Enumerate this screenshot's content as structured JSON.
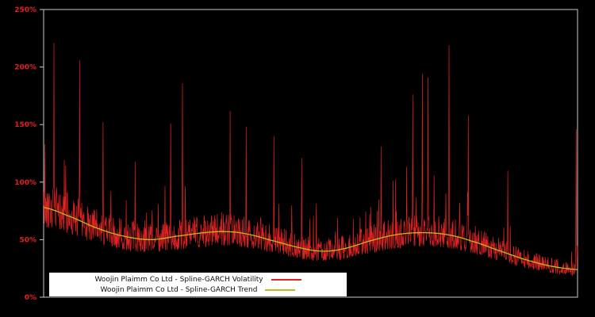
{
  "chart_data": {
    "type": "line",
    "title": "",
    "xlabel": "",
    "ylabel": "",
    "ylim": [
      0,
      250
    ],
    "ytick_values": [
      0,
      50,
      100,
      150,
      200,
      250
    ],
    "ytick_labels": [
      "0%",
      "50%",
      "100%",
      "150%",
      "200%",
      "250%"
    ],
    "tick_color": "#e62020",
    "background": "#000000",
    "frame_color": "#c8c8c8",
    "grid": false,
    "legend_position": "bottom-center",
    "series": [
      {
        "name": "Woojin Plaimm Co Ltd - Spline-GARCH Volatility",
        "color": "#e12222",
        "type": "noisy-band",
        "n_points": 1500,
        "seed": 42,
        "band_low_factor": 0.78,
        "band_high_factor": 1.28,
        "spike_chance": 0.05,
        "spike_max_factor": 2.2,
        "major_spikes": [
          {
            "x": 0.002,
            "y": 133
          },
          {
            "x": 0.019,
            "y": 221
          },
          {
            "x": 0.067,
            "y": 206
          },
          {
            "x": 0.111,
            "y": 152
          },
          {
            "x": 0.171,
            "y": 118
          },
          {
            "x": 0.238,
            "y": 151
          },
          {
            "x": 0.26,
            "y": 186
          },
          {
            "x": 0.349,
            "y": 162
          },
          {
            "x": 0.379,
            "y": 148
          },
          {
            "x": 0.431,
            "y": 140
          },
          {
            "x": 0.483,
            "y": 121
          },
          {
            "x": 0.632,
            "y": 131
          },
          {
            "x": 0.691,
            "y": 176
          },
          {
            "x": 0.709,
            "y": 194
          },
          {
            "x": 0.72,
            "y": 191
          },
          {
            "x": 0.759,
            "y": 219
          },
          {
            "x": 0.795,
            "y": 158
          },
          {
            "x": 0.869,
            "y": 110
          },
          {
            "x": 0.997,
            "y": 146
          }
        ]
      },
      {
        "name": "Woojin Plaimm Co Ltd - Spline-GARCH Trend",
        "color": "#bcbd22",
        "type": "smooth-spline",
        "points": [
          [
            0.0,
            78
          ],
          [
            0.05,
            70
          ],
          [
            0.1,
            60
          ],
          [
            0.15,
            53
          ],
          [
            0.2,
            50
          ],
          [
            0.25,
            53
          ],
          [
            0.3,
            56
          ],
          [
            0.34,
            57
          ],
          [
            0.38,
            55
          ],
          [
            0.43,
            49
          ],
          [
            0.48,
            43
          ],
          [
            0.52,
            40
          ],
          [
            0.56,
            42
          ],
          [
            0.62,
            50
          ],
          [
            0.67,
            55
          ],
          [
            0.72,
            56
          ],
          [
            0.76,
            54
          ],
          [
            0.8,
            49
          ],
          [
            0.85,
            41
          ],
          [
            0.9,
            33
          ],
          [
            0.95,
            27
          ],
          [
            1.0,
            24
          ]
        ]
      }
    ]
  },
  "legend": {
    "items": [
      {
        "label": "Woojin Plaimm Co Ltd - Spline-GARCH Volatility"
      },
      {
        "label": "Woojin Plaimm Co Ltd - Spline-GARCH Trend"
      }
    ]
  }
}
